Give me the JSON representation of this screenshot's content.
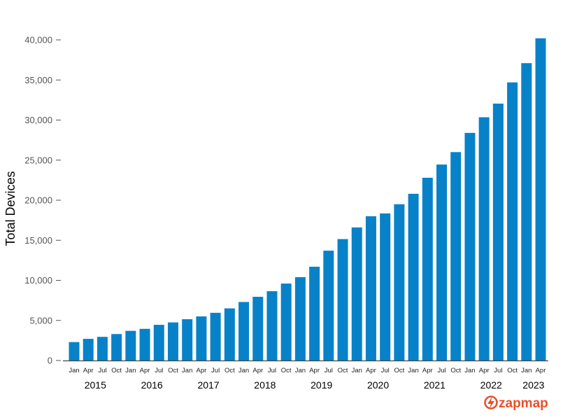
{
  "chart_data": {
    "type": "bar",
    "ylabel": "Total Devices",
    "ylim": [
      0,
      40000
    ],
    "yticks": [
      0,
      5000,
      10000,
      15000,
      20000,
      25000,
      30000,
      35000,
      40000
    ],
    "ytick_labels": [
      "0",
      "5,000",
      "10,000",
      "15,000",
      "20,000",
      "25,000",
      "30,000",
      "35,000",
      "40,000"
    ],
    "categories": [
      "Jan",
      "Apr",
      "Jul",
      "Oct",
      "Jan",
      "Apr",
      "Jul",
      "Oct",
      "Jan",
      "Apr",
      "Jul",
      "Oct",
      "Jan",
      "Apr",
      "Jul",
      "Oct",
      "Jan",
      "Apr",
      "Jul",
      "Oct",
      "Jan",
      "Apr",
      "Jul",
      "Oct",
      "Jan",
      "Apr",
      "Jul",
      "Oct",
      "Jan",
      "Apr",
      "Jul",
      "Oct",
      "Jan",
      "Apr"
    ],
    "years": [
      "2015",
      "2016",
      "2017",
      "2018",
      "2019",
      "2020",
      "2021",
      "2022",
      "2023"
    ],
    "values": [
      2300,
      2700,
      2950,
      3300,
      3700,
      3950,
      4450,
      4750,
      5150,
      5500,
      5950,
      6500,
      7300,
      7950,
      8650,
      9600,
      10400,
      11700,
      13700,
      15150,
      16600,
      18000,
      18350,
      19500,
      20800,
      22800,
      24450,
      26000,
      28400,
      30350,
      32050,
      34700,
      37100,
      40200
    ],
    "bar_color": "#0782c9",
    "legend": "none",
    "grid": false
  },
  "brand": {
    "logo_text": "zapmap",
    "text_color": "#e8512b"
  }
}
